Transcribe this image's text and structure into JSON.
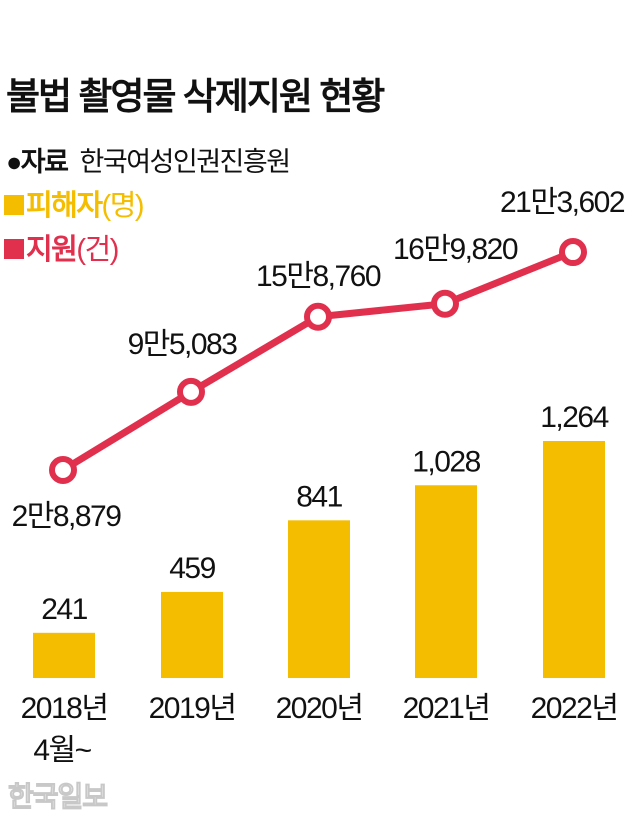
{
  "title": "불법 촬영물 삭제지원 현황",
  "source": {
    "label": "●자료",
    "value": "한국여성인권진흥원"
  },
  "watermark": "한국일보",
  "chart_data": {
    "type": "bar+line",
    "categories": [
      "2018년",
      "2019년",
      "2020년",
      "2021년",
      "2022년"
    ],
    "category_sublabels": [
      "4월~",
      "",
      "",
      "",
      ""
    ],
    "series": [
      {
        "name": "피해자",
        "unit": "(명)",
        "type": "bar",
        "color": "#F5BD00",
        "values": [
          241,
          459,
          841,
          1028,
          1264
        ],
        "labels": [
          "241",
          "459",
          "841",
          "1,028",
          "1,264"
        ]
      },
      {
        "name": "지원",
        "unit": "(건)",
        "type": "line",
        "color": "#E0304E",
        "values": [
          28879,
          95083,
          158760,
          169820,
          213602
        ],
        "labels": [
          "2만8,879",
          "9만5,083",
          "15만8,760",
          "16만9,820",
          "21만3,602"
        ]
      }
    ],
    "legend": "top-left",
    "grid": false
  }
}
